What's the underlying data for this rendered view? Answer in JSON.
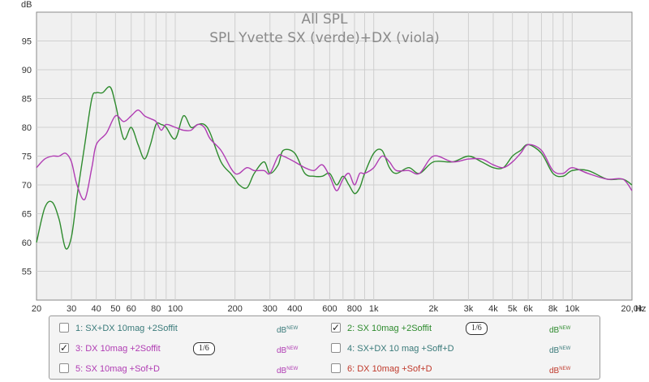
{
  "chart_data": {
    "type": "line",
    "title": "All SPL",
    "subtitle": "SPL Yvette SX (verde)+DX (viola)",
    "ylabel": "dB",
    "xlabel": "Hz",
    "xscale": "log",
    "xlim": [
      20,
      20000
    ],
    "ylim": [
      50,
      100
    ],
    "grid": true,
    "y_ticks": [
      "95",
      "90",
      "85",
      "80",
      "75",
      "70",
      "65",
      "60",
      "55"
    ],
    "y_tick_values": [
      95,
      90,
      85,
      80,
      75,
      70,
      65,
      60,
      55
    ],
    "x_ticks": [
      {
        "v": 20,
        "label": "20"
      },
      {
        "v": 30,
        "label": "30"
      },
      {
        "v": 40,
        "label": "40"
      },
      {
        "v": 50,
        "label": "50"
      },
      {
        "v": 60,
        "label": "60"
      },
      {
        "v": 80,
        "label": "80"
      },
      {
        "v": 100,
        "label": "100"
      },
      {
        "v": 200,
        "label": "200"
      },
      {
        "v": 300,
        "label": "300"
      },
      {
        "v": 400,
        "label": "400"
      },
      {
        "v": 600,
        "label": "600"
      },
      {
        "v": 800,
        "label": "800"
      },
      {
        "v": 1000,
        "label": "1k"
      },
      {
        "v": 2000,
        "label": "2k"
      },
      {
        "v": 3000,
        "label": "3k"
      },
      {
        "v": 4000,
        "label": "4k"
      },
      {
        "v": 5000,
        "label": "5k"
      },
      {
        "v": 6000,
        "label": "6k"
      },
      {
        "v": 8000,
        "label": "8k"
      },
      {
        "v": 10000,
        "label": "10k"
      },
      {
        "v": 20000,
        "label": "20,0k"
      }
    ],
    "series": [
      {
        "color": "#2e8b2e",
        "x": [
          20,
          22,
          24,
          26,
          28,
          30,
          32,
          35,
          38,
          40,
          43,
          47,
          50,
          55,
          60,
          65,
          70,
          75,
          80,
          85,
          90,
          100,
          110,
          120,
          130,
          140,
          150,
          170,
          190,
          200,
          210,
          230,
          250,
          280,
          300,
          330,
          350,
          400,
          450,
          500,
          550,
          600,
          650,
          700,
          750,
          800,
          850,
          900,
          1000,
          1100,
          1200,
          1300,
          1500,
          1700,
          2000,
          2500,
          3000,
          3500,
          4000,
          4500,
          5000,
          5500,
          6000,
          7000,
          8000,
          9000,
          10000,
          12000,
          15000,
          18000,
          20000
        ],
        "y": [
          60,
          66,
          67,
          64,
          59,
          61,
          68,
          77,
          85,
          86,
          86,
          87,
          84,
          78,
          80,
          77,
          74.5,
          77,
          80.5,
          80.5,
          80,
          78,
          82,
          80,
          80.5,
          80.5,
          79,
          74,
          72,
          71,
          70,
          69.5,
          72,
          74,
          72,
          73.5,
          76,
          75.5,
          72,
          71.5,
          71.5,
          72,
          70,
          71.5,
          70,
          68.5,
          69.5,
          72,
          75.5,
          76,
          73,
          72,
          73,
          72,
          74,
          74,
          75,
          74,
          73,
          73,
          75,
          76,
          77,
          75.5,
          72,
          71.5,
          72.5,
          72.5,
          71,
          71,
          70
        ]
      },
      {
        "color": "#b03cb3",
        "x": [
          20,
          22,
          24,
          26,
          28,
          30,
          32,
          35,
          38,
          40,
          45,
          50,
          55,
          60,
          65,
          70,
          75,
          80,
          85,
          90,
          100,
          110,
          120,
          130,
          140,
          150,
          170,
          190,
          200,
          210,
          230,
          250,
          280,
          300,
          330,
          350,
          400,
          450,
          500,
          550,
          600,
          650,
          700,
          750,
          800,
          850,
          900,
          1000,
          1100,
          1200,
          1300,
          1500,
          1700,
          2000,
          2500,
          3000,
          3500,
          4000,
          4500,
          5000,
          5500,
          6000,
          7000,
          8000,
          9000,
          10000,
          12000,
          15000,
          18000,
          20000
        ],
        "y": [
          73,
          74.5,
          75,
          75,
          75.5,
          74,
          70,
          67.5,
          73,
          77,
          79,
          82,
          81,
          82,
          83,
          82,
          81.5,
          81,
          79.5,
          80.5,
          80,
          79.5,
          79.5,
          80.5,
          80,
          78,
          76,
          73,
          72,
          72,
          73,
          72.5,
          72.5,
          72,
          75,
          75,
          74,
          73,
          72.5,
          73.5,
          71.5,
          69,
          71,
          72,
          70,
          72,
          72,
          73,
          75,
          74,
          72.5,
          72.5,
          72,
          75,
          74,
          74.5,
          74.5,
          73.5,
          73,
          74,
          75.5,
          77,
          76,
          72.5,
          72,
          73,
          72,
          71,
          71,
          69
        ]
      }
    ]
  },
  "legend": {
    "entries": [
      {
        "label": "1: SX+DX 10mag +2Soffit",
        "color": "#3a7a7a",
        "checked": false,
        "check_mark": "",
        "unit": "dB",
        "unit_sup": "NEW",
        "smoothing": ""
      },
      {
        "label": "2: SX 10mag +2Soffit",
        "color": "#2e8b2e",
        "checked": true,
        "check_mark": "✓",
        "unit": "dB",
        "unit_sup": "NEW",
        "smoothing": "1/6"
      },
      {
        "label": "3: DX 10mag +2Soffit",
        "color": "#b03cb3",
        "checked": true,
        "check_mark": "✓",
        "unit": "dB",
        "unit_sup": "NEW",
        "smoothing": "1/6"
      },
      {
        "label": "4: SX+DX 10 mag +Soff+D",
        "color": "#3a7a7a",
        "checked": false,
        "check_mark": "",
        "unit": "dB",
        "unit_sup": "NEW",
        "smoothing": ""
      },
      {
        "label": "5: SX 10mag +Sof+D",
        "color": "#b03cb3",
        "checked": false,
        "check_mark": "",
        "unit": "dB",
        "unit_sup": "NEW",
        "smoothing": ""
      },
      {
        "label": "6: DX 10mag +Sof+D",
        "color": "#c0392b",
        "checked": false,
        "check_mark": "",
        "unit": "dB",
        "unit_sup": "NEW",
        "smoothing": ""
      }
    ]
  }
}
